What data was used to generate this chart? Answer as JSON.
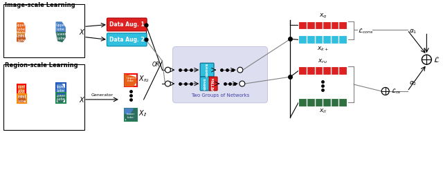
{
  "bg_color": "#ffffff",
  "lung_orange_color": "#E8621A",
  "lung_blue_color": "#4A82C8",
  "lung_green_color": "#2E7060",
  "lung_mid_color": "#D88830",
  "lung_lower_color": "#C05820",
  "data_aug1_color": "#DD2020",
  "data_aug2_color": "#30BFDF",
  "convs_color": "#30BFDF",
  "attns_color": "#DD2020",
  "feat_red_color": "#DD2020",
  "feat_cyan_color": "#30BFDF",
  "feat_green_color": "#2E7040",
  "light_purple_bg": "#C8C8E8",
  "section_labels": [
    "Image-scale Learning",
    "Region-scale Learning"
  ],
  "label_two_groups": "Two Groups of Networks"
}
